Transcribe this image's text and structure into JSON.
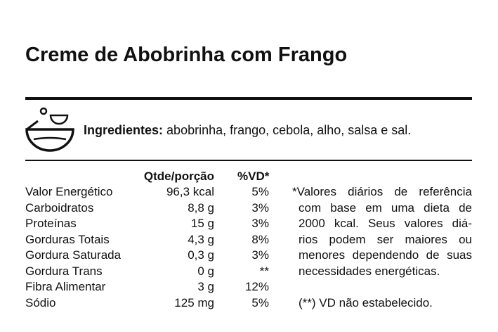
{
  "title": "Creme de Abobrinha com Frango",
  "ingredients": {
    "label": "Ingredientes:",
    "text": "abobrinha, frango, cebola, alho, salsa e sal."
  },
  "table": {
    "header": [
      "Qtde/porção",
      "%VD*"
    ],
    "rows": [
      [
        "Valor Energético",
        "96,3 kcal",
        "5%"
      ],
      [
        "Carboidratos",
        "8,8 g",
        "3%"
      ],
      [
        "Proteínas",
        "15 g",
        "3%"
      ],
      [
        "Gorduras Totais",
        "4,3 g",
        "8%"
      ],
      [
        "Gordura Saturada",
        "0,3 g",
        "3%"
      ],
      [
        "Gordura Trans",
        "0 g",
        "**"
      ],
      [
        "Fibra Alimentar",
        "3 g",
        "12%"
      ],
      [
        "Sódio",
        "125 mg",
        "5%"
      ]
    ]
  },
  "footnote": {
    "lines": [
      "*Valores diários de referência",
      "com base em uma dieta de",
      "2000 kcal. Seus valores diá-",
      "rios podem ser maiores ou",
      "menores dependendo de suas",
      "necessidades energéticas."
    ],
    "note": "(**) VD não estabelecido."
  }
}
